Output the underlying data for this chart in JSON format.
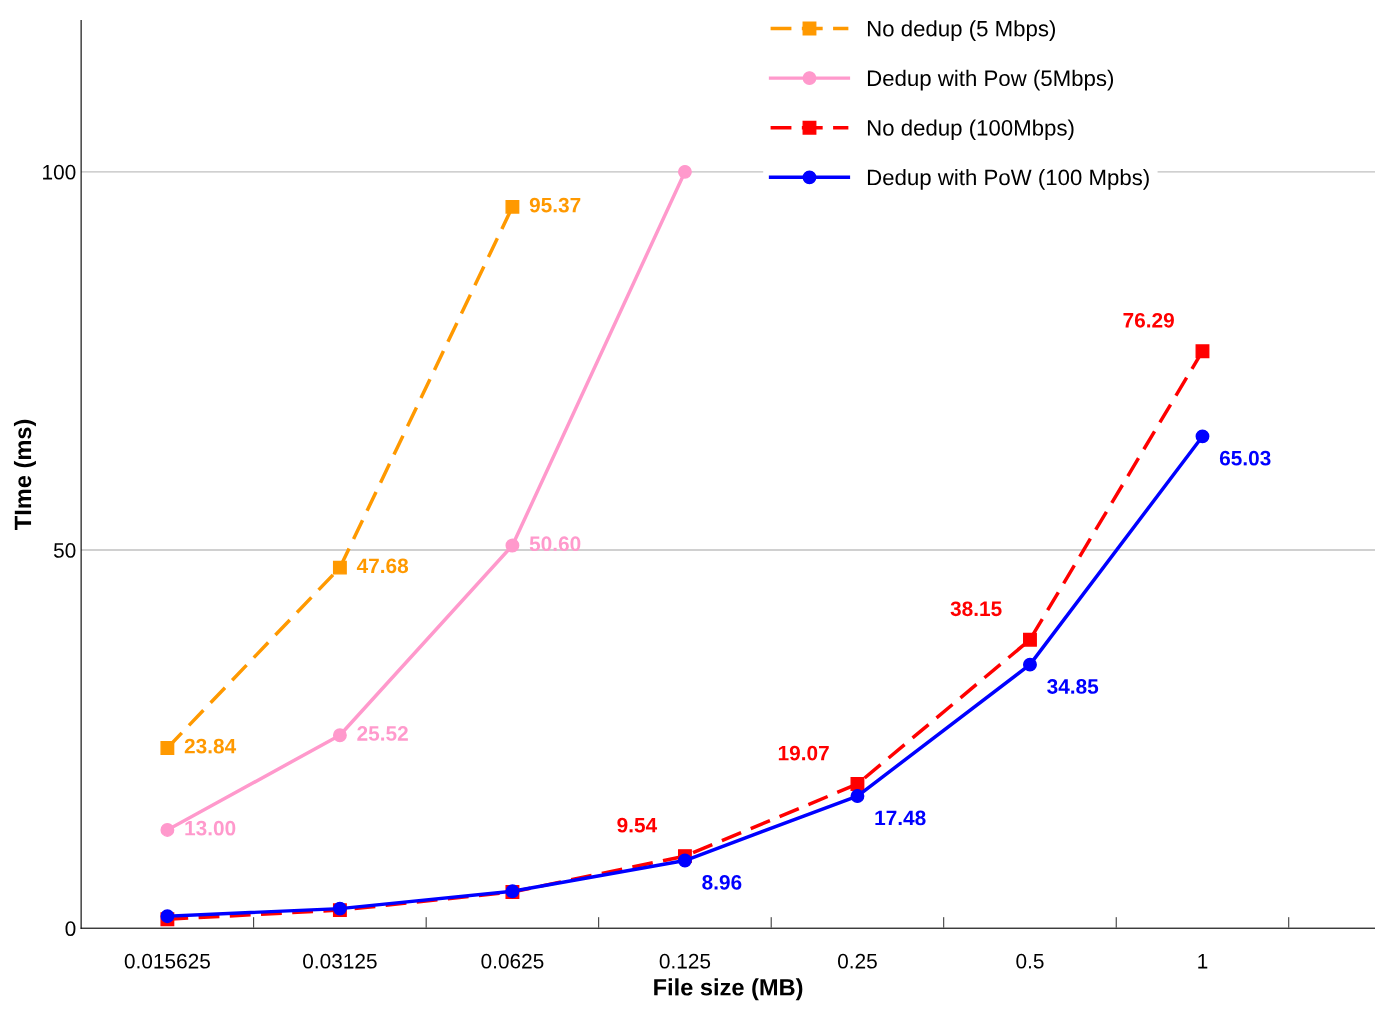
{
  "chart_data": {
    "type": "line",
    "xlabel": "File size (MB)",
    "ylabel": "TIme (ms)",
    "categories": [
      "0.015625",
      "0.03125",
      "0.0625",
      "0.125",
      "0.25",
      "0.5",
      "1",
      null
    ],
    "series": [
      {
        "name": "No dedup (5 Mbps)",
        "color": "#ff9900",
        "marker": "square",
        "line_style": "dashed",
        "values": [
          23.84,
          47.68,
          95.37,
          null,
          null,
          null,
          null,
          null
        ],
        "value_labels": [
          "23.84",
          "47.68",
          "95.37",
          null,
          null,
          null,
          null,
          null
        ]
      },
      {
        "name": "Dedup with Pow (5Mbps)",
        "color": "#ff99cc",
        "marker": "circle",
        "line_style": "solid",
        "values": [
          13.0,
          25.52,
          50.6,
          100,
          null,
          null,
          null,
          null
        ],
        "value_labels": [
          "13.00",
          "25.52",
          "50.60",
          null,
          null,
          null,
          null,
          null
        ]
      },
      {
        "name": "No dedup (100Mbps)",
        "color": "#ff0000",
        "marker": "square",
        "line_style": "dashed",
        "values": [
          1.2,
          2.4,
          4.8,
          9.54,
          19.07,
          38.15,
          76.29,
          null
        ],
        "value_labels": [
          null,
          null,
          null,
          "9.54",
          "19.07",
          "38.15",
          "76.29",
          null
        ]
      },
      {
        "name": "Dedup with PoW (100 Mpbs)",
        "color": "#0000ff",
        "marker": "circle",
        "line_style": "solid",
        "values": [
          1.6,
          2.6,
          4.9,
          8.96,
          17.48,
          34.85,
          65.03,
          null
        ],
        "value_labels": [
          null,
          null,
          null,
          "8.96",
          "17.48",
          "34.85",
          "65.03",
          null
        ]
      }
    ],
    "ylim": [
      0,
      120
    ],
    "yticks": [
      0,
      50,
      100
    ],
    "grid": "y",
    "legend": "top right"
  }
}
